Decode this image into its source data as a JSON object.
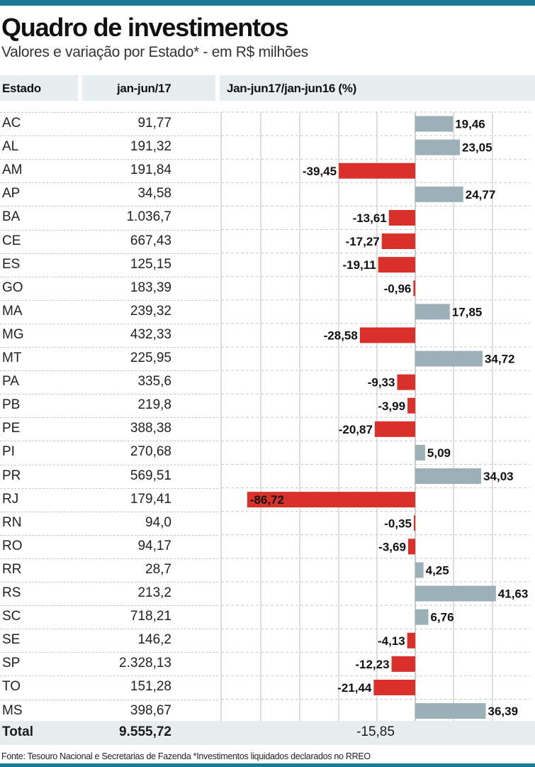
{
  "title": "Quadro de investimentos",
  "subtitle": "Valores e variação por Estado* - em R$ milhões",
  "headers": {
    "state": "Estado",
    "value": "jan-jun/17",
    "change": "Jan-jun17/jan-jun16 (%)"
  },
  "total": {
    "label": "Total",
    "value": "9.555,72",
    "change": "-15,85"
  },
  "footnote": "Fonte: Tesouro Nacional e Secretarias de Fazenda *Investimentos liquidados declarados no RREO",
  "colors": {
    "positive": "#9cb1b7",
    "negative": "#d9302a",
    "header_bg": "#e8eeef",
    "accent": "#1b7a93"
  },
  "chart_data": {
    "type": "bar",
    "orientation": "horizontal",
    "categories": [
      "AC",
      "AL",
      "AM",
      "AP",
      "BA",
      "CE",
      "ES",
      "GO",
      "MA",
      "MG",
      "MT",
      "PA",
      "PB",
      "PE",
      "PI",
      "PR",
      "RJ",
      "RN",
      "RO",
      "RR",
      "RS",
      "SC",
      "SE",
      "SP",
      "TO",
      "MS"
    ],
    "values_table": [
      "91,77",
      "191,32",
      "191,84",
      "34,58",
      "1.036,7",
      "667,43",
      "125,15",
      "183,39",
      "239,32",
      "432,33",
      "225,95",
      "335,6",
      "219,8",
      "388,38",
      "270,68",
      "569,51",
      "179,41",
      "94,0",
      "94,17",
      "28,7",
      "213,2",
      "718,21",
      "146,2",
      "2.328,13",
      "151,28",
      "398,67"
    ],
    "values": [
      19.46,
      23.05,
      -39.45,
      24.77,
      -13.61,
      -17.27,
      -19.11,
      -0.96,
      17.85,
      -28.58,
      34.72,
      -9.33,
      -3.99,
      -20.87,
      5.09,
      34.03,
      -86.72,
      -0.35,
      -3.69,
      4.25,
      41.63,
      6.76,
      -4.13,
      -12.23,
      -21.44,
      36.39
    ],
    "labels": [
      "19,46",
      "23,05",
      "-39,45",
      "24,77",
      "-13,61",
      "-17,27",
      "-19,11",
      "-0,96",
      "17,85",
      "-28,58",
      "34,72",
      "-9,33",
      "-3,99",
      "-20,87",
      "5,09",
      "34,03",
      "-86,72",
      "-0,35",
      "-3,69",
      "4,25",
      "41,63",
      "6,76",
      "-4,13",
      "-12,23",
      "-21,44",
      "36,39"
    ],
    "xlim": [
      -90,
      44
    ],
    "grid": true
  }
}
